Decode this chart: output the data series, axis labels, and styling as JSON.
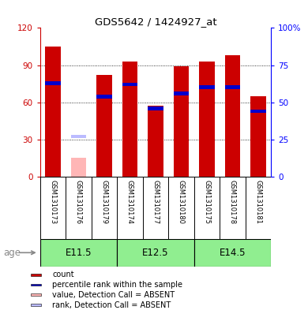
{
  "title": "GDS5642 / 1424927_at",
  "samples": [
    "GSM1310173",
    "GSM1310176",
    "GSM1310179",
    "GSM1310174",
    "GSM1310177",
    "GSM1310180",
    "GSM1310175",
    "GSM1310178",
    "GSM1310181"
  ],
  "red_values": [
    105,
    0,
    82,
    93,
    57,
    89,
    93,
    98,
    65
  ],
  "absent_value": [
    0,
    15,
    0,
    0,
    0,
    0,
    0,
    0,
    0
  ],
  "blue_values": [
    63,
    0,
    54,
    62,
    46,
    56,
    60,
    60,
    44
  ],
  "absent_rank": [
    0,
    27,
    0,
    0,
    0,
    0,
    0,
    0,
    0
  ],
  "is_absent": [
    false,
    true,
    false,
    false,
    false,
    false,
    false,
    false,
    false
  ],
  "groups": [
    {
      "label": "E11.5",
      "start": 0,
      "end": 3
    },
    {
      "label": "E12.5",
      "start": 3,
      "end": 6
    },
    {
      "label": "E14.5",
      "start": 6,
      "end": 9
    }
  ],
  "ylim_left": [
    0,
    120
  ],
  "ylim_right": [
    0,
    100
  ],
  "yticks_left": [
    0,
    30,
    60,
    90,
    120
  ],
  "yticks_right": [
    0,
    25,
    50,
    75,
    100
  ],
  "ytick_labels_left": [
    "0",
    "30",
    "60",
    "90",
    "120"
  ],
  "ytick_labels_right": [
    "0",
    "25",
    "50",
    "75",
    "100%"
  ],
  "red_color": "#CC0000",
  "blue_color": "#0000CC",
  "absent_red_color": "#FFB6B6",
  "absent_blue_color": "#BBBBFF",
  "bar_width": 0.6,
  "bg_plot": "#FFFFFF",
  "bg_label": "#D3D3D3",
  "bg_age": "#90EE90",
  "legend_items": [
    {
      "color": "#CC0000",
      "label": "count"
    },
    {
      "color": "#0000CC",
      "label": "percentile rank within the sample"
    },
    {
      "color": "#FFB6B6",
      "label": "value, Detection Call = ABSENT"
    },
    {
      "color": "#BBBBFF",
      "label": "rank, Detection Call = ABSENT"
    }
  ]
}
